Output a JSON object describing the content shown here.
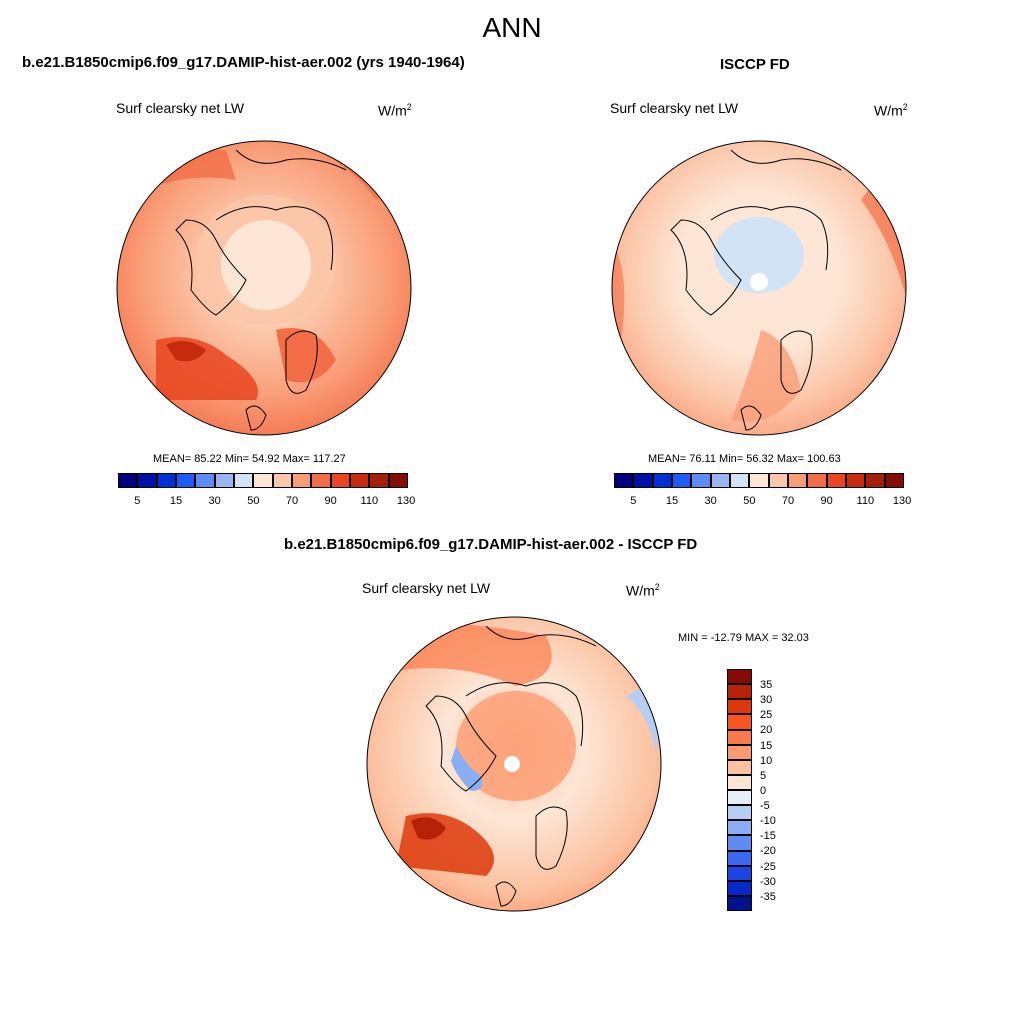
{
  "title": "ANN",
  "panels": [
    {
      "id": "model",
      "header": "b.e21.B1850cmip6.f09_g17.DAMIP-hist-aer.002 (yrs 1940-1964)",
      "variable": "Surf clearsky net LW",
      "units": "W/m",
      "units_sup": "2",
      "stats": "MEAN=  85.22  Min=  54.92  Max= 117.27"
    },
    {
      "id": "obs",
      "header": "ISCCP FD",
      "variable": "Surf clearsky net LW",
      "units": "W/m",
      "units_sup": "2",
      "stats": "MEAN=  76.11  Min=  56.32  Max= 100.63"
    },
    {
      "id": "diff",
      "header": "b.e21.B1850cmip6.f09_g17.DAMIP-hist-aer.002 - ISCCP FD",
      "variable": "Surf clearsky net LW",
      "units": "W/m",
      "units_sup": "2",
      "stats": "MIN = -12.79 MAX =  32.03"
    }
  ],
  "colorbar_abs": {
    "colors": [
      "#00007f",
      "#0012a6",
      "#0030d8",
      "#1e5cf8",
      "#5b8cf8",
      "#98b6f6",
      "#d3e3f6",
      "#fde6d6",
      "#fcc6a9",
      "#f99d77",
      "#f36e47",
      "#e84520",
      "#c72a0c",
      "#a81c0a",
      "#850c05"
    ],
    "tick_labels": [
      "5",
      "15",
      "30",
      "50",
      "70",
      "90",
      "110",
      "130"
    ]
  },
  "colorbar_diff": {
    "colors_top_to_bottom": [
      "#850c05",
      "#b52208",
      "#dd380c",
      "#f85521",
      "#fb7a48",
      "#fc9b70",
      "#fcc1a0",
      "#fde6d6",
      "#e6eef8",
      "#b5cff4",
      "#8aaef4",
      "#5f8cf4",
      "#3a68f0",
      "#1a44e6",
      "#0628c8",
      "#00138f"
    ],
    "tick_labels": [
      "35",
      "30",
      "25",
      "20",
      "15",
      "10",
      "5",
      "0",
      "-5",
      "-10",
      "-15",
      "-20",
      "-25",
      "-30",
      "-35"
    ]
  },
  "chart_data": {
    "type": "heatmap",
    "projection": "north polar stereographic",
    "season": "ANN",
    "fields": [
      {
        "name": "b.e21.B1850cmip6.f09_g17.DAMIP-hist-aer.002 (yrs 1940-1964)",
        "mean": 85.22,
        "min": 54.92,
        "max": 117.27,
        "units": "W/m2"
      },
      {
        "name": "ISCCP FD",
        "mean": 76.11,
        "min": 56.32,
        "max": 100.63,
        "units": "W/m2"
      },
      {
        "name": "b.e21.B1850cmip6.f09_g17.DAMIP-hist-aer.002 - ISCCP FD",
        "min": -12.79,
        "max": 32.03,
        "units": "W/m2"
      }
    ],
    "abs_levels": [
      5,
      15,
      30,
      50,
      70,
      90,
      110,
      130
    ],
    "diff_levels": [
      35,
      30,
      25,
      20,
      15,
      10,
      5,
      0,
      -5,
      -10,
      -15,
      -20,
      -25,
      -30,
      -35
    ]
  }
}
